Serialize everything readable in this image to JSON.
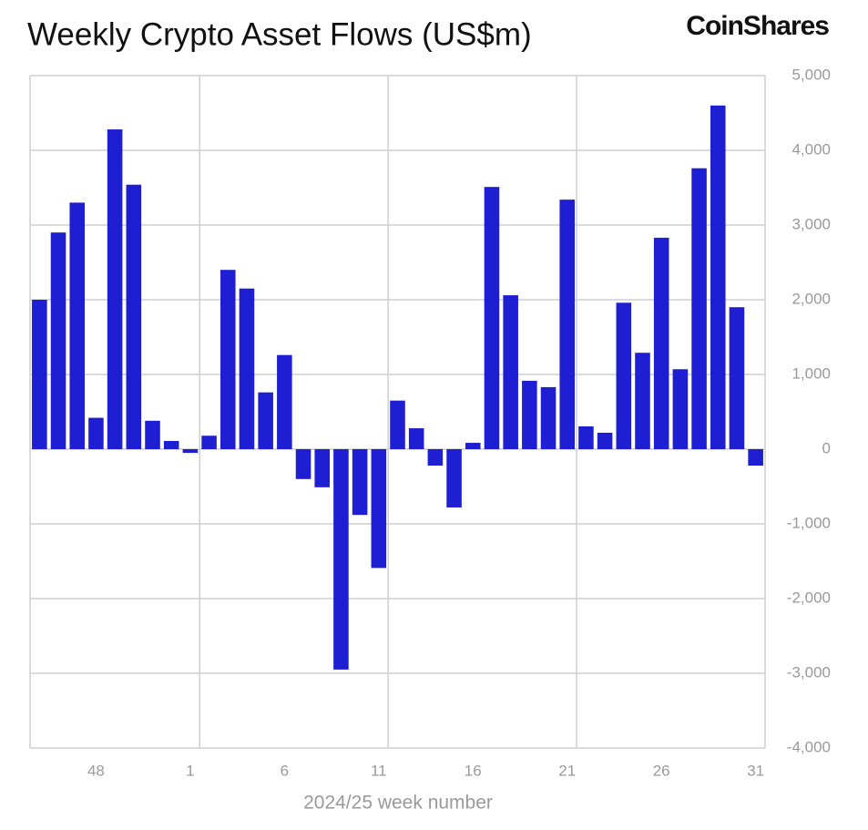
{
  "chart_data": {
    "type": "bar",
    "title": "Weekly Crypto Asset Flows (US$m)",
    "brand": "CoinShares",
    "x_label": "2024/25 week number",
    "categories": [
      null,
      null,
      null,
      "48",
      null,
      null,
      null,
      null,
      "1",
      null,
      null,
      null,
      null,
      "6",
      null,
      null,
      null,
      null,
      "11",
      null,
      null,
      null,
      null,
      "16",
      null,
      null,
      null,
      null,
      "21",
      null,
      null,
      null,
      null,
      "26",
      null,
      null,
      null,
      null,
      "31"
    ],
    "values": [
      2000,
      2900,
      3300,
      420,
      4280,
      3540,
      380,
      110,
      -50,
      180,
      2400,
      2150,
      760,
      1260,
      -400,
      -510,
      -2950,
      -880,
      -1590,
      650,
      280,
      -220,
      -780,
      85,
      3510,
      2060,
      915,
      830,
      3340,
      305,
      220,
      1960,
      1290,
      2830,
      1070,
      3760,
      4600,
      1900,
      -220
    ],
    "color": "#1e1ed2",
    "ylim": [
      -4000,
      5000
    ],
    "yticks": [
      {
        "value": -4000,
        "label": "-4,000"
      },
      {
        "value": -3000,
        "label": "-3,000"
      },
      {
        "value": -2000,
        "label": "-2,000"
      },
      {
        "value": -1000,
        "label": "-1,000"
      },
      0,
      {
        "value": 1000,
        "label": "1,000"
      },
      {
        "value": 2000,
        "label": "2,000"
      },
      {
        "value": 3000,
        "label": "3,000"
      },
      {
        "value": 4000,
        "label": "4,000"
      },
      {
        "value": 5000,
        "label": "5,000"
      }
    ],
    "grid": true
  }
}
